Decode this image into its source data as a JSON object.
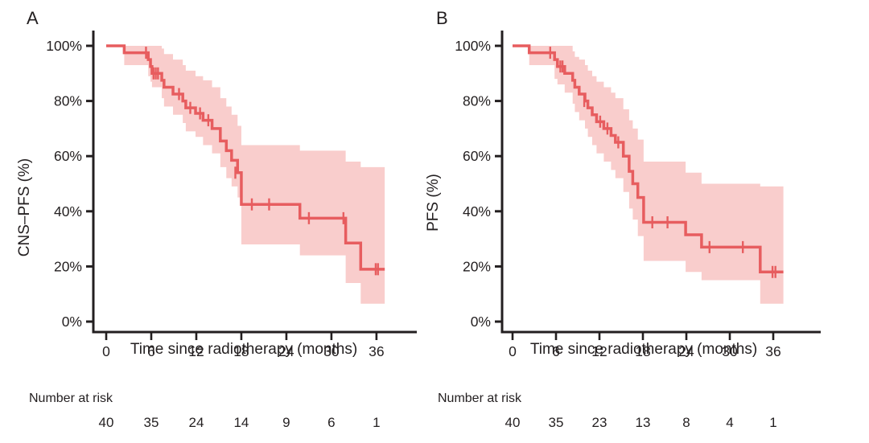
{
  "page": {
    "background": "#ffffff"
  },
  "colors": {
    "curve": "#e75d5f",
    "ci_band": "#f9cdcc",
    "axis_and_text": "#231f20"
  },
  "chart_data": [
    {
      "type": "line",
      "subtype": "kaplan_meier_step_with_ci",
      "panel_label": "A",
      "ylabel": "CNS–PFS (%)",
      "xlabel": "Time since radiotherapy (months)",
      "x_ticks": [
        0,
        6,
        12,
        18,
        24,
        30,
        36
      ],
      "y_tick_labels": [
        "0%",
        "20%",
        "40%",
        "60%",
        "80%",
        "100%"
      ],
      "y_tick_values": [
        0,
        20,
        40,
        60,
        80,
        100
      ],
      "xlim": [
        0,
        41
      ],
      "ylim": [
        0,
        100
      ],
      "grid": false,
      "legend": "none",
      "series": [
        {
          "name": "CNS-PFS",
          "t": [
            0,
            2.4,
            5.6,
            5.9,
            6.1,
            7.4,
            7.7,
            8.9,
            10.2,
            10.6,
            11.9,
            12.9,
            14.1,
            15.2,
            16.0,
            16.7,
            17.5,
            18.0,
            25.8,
            31.9,
            33.9
          ],
          "s": [
            100,
            97.5,
            95,
            92.5,
            90,
            87.5,
            85,
            82.5,
            80,
            77.5,
            75.5,
            73,
            70,
            65.5,
            62,
            58.5,
            54,
            42.5,
            37.5,
            28.5,
            19
          ],
          "end_time": 37.1
        }
      ],
      "censor_marks": [
        [
          5.3,
          97.5
        ],
        [
          6.3,
          90
        ],
        [
          6.6,
          90
        ],
        [
          6.9,
          90
        ],
        [
          9.7,
          82.5
        ],
        [
          11.2,
          77.5
        ],
        [
          12.5,
          75.5
        ],
        [
          13.6,
          73
        ],
        [
          17.2,
          54
        ],
        [
          19.4,
          42.5
        ],
        [
          21.7,
          42.5
        ],
        [
          27.0,
          37.5
        ],
        [
          31.6,
          37.5
        ],
        [
          35.9,
          19
        ],
        [
          36.2,
          19
        ]
      ],
      "confidence_interval": {
        "t": [
          2.4,
          5.6,
          5.9,
          6.1,
          7.4,
          7.7,
          8.9,
          10.2,
          10.6,
          11.9,
          12.9,
          14.1,
          15.2,
          16.0,
          16.7,
          17.5,
          18.0,
          25.8,
          31.9,
          33.9
        ],
        "upper": [
          100,
          100,
          100,
          100,
          99,
          97,
          95,
          93,
          91,
          89,
          87.5,
          85,
          81,
          78,
          75,
          71,
          64,
          62,
          58,
          56
        ],
        "lower": [
          93,
          89,
          87,
          85,
          81,
          78,
          75,
          72,
          69,
          67,
          64,
          61,
          56,
          52,
          49,
          45,
          28,
          24,
          14,
          6.5
        ]
      },
      "number_at_risk": {
        "label": "Number at risk",
        "times": [
          0,
          6,
          12,
          18,
          24,
          30,
          36
        ],
        "values": [
          40,
          35,
          24,
          14,
          9,
          6,
          1
        ]
      }
    },
    {
      "type": "line",
      "subtype": "kaplan_meier_step_with_ci",
      "panel_label": "B",
      "ylabel": "PFS (%)",
      "xlabel": "Time since radiotherapy (months)",
      "x_ticks": [
        0,
        6,
        12,
        18,
        24,
        30,
        36
      ],
      "y_tick_labels": [
        "0%",
        "20%",
        "40%",
        "60%",
        "80%",
        "100%"
      ],
      "y_tick_values": [
        0,
        20,
        40,
        60,
        80,
        100
      ],
      "xlim": [
        0,
        41
      ],
      "ylim": [
        0,
        100
      ],
      "grid": false,
      "legend": "none",
      "series": [
        {
          "name": "PFS",
          "t": [
            0,
            2.3,
            5.8,
            6.2,
            7.2,
            8.3,
            8.6,
            9.2,
            10.0,
            10.4,
            11.0,
            11.6,
            12.6,
            13.6,
            14.2,
            15.3,
            16.1,
            16.6,
            17.3,
            18.1,
            23.9,
            26.1,
            34.2
          ],
          "s": [
            100,
            97.5,
            95,
            92.5,
            90,
            87.5,
            85,
            82.5,
            80,
            77.5,
            75,
            72.5,
            70,
            67.5,
            65,
            60,
            54.5,
            50,
            45,
            36,
            31.5,
            27,
            18
          ],
          "end_time": 37.4
        }
      ],
      "censor_marks": [
        [
          5.2,
          97.5
        ],
        [
          6.6,
          92.5
        ],
        [
          6.9,
          92.5
        ],
        [
          9.9,
          80
        ],
        [
          12.1,
          72.5
        ],
        [
          13.1,
          70
        ],
        [
          14.6,
          65
        ],
        [
          19.3,
          36
        ],
        [
          21.4,
          36
        ],
        [
          27.2,
          27
        ],
        [
          31.8,
          27
        ],
        [
          35.9,
          18
        ],
        [
          36.3,
          18
        ]
      ],
      "confidence_interval": {
        "t": [
          2.3,
          5.8,
          6.2,
          7.2,
          8.3,
          8.6,
          9.2,
          10.0,
          10.4,
          11.0,
          11.6,
          12.6,
          13.6,
          14.2,
          15.3,
          16.1,
          16.6,
          17.3,
          18.1,
          23.9,
          26.1,
          34.2
        ],
        "upper": [
          100,
          100,
          100,
          100,
          98,
          96,
          95,
          93,
          91,
          89,
          87,
          85,
          83,
          81,
          77,
          73,
          70,
          66,
          58,
          54,
          50,
          49
        ],
        "lower": [
          93,
          88,
          86,
          83,
          79,
          76,
          73,
          70,
          67,
          64,
          61,
          58,
          55,
          52,
          47,
          41,
          37,
          31,
          22,
          18,
          15,
          6.5
        ]
      },
      "number_at_risk": {
        "label": "Number at risk",
        "times": [
          0,
          6,
          12,
          18,
          24,
          30,
          36
        ],
        "values": [
          40,
          35,
          23,
          13,
          8,
          4,
          1
        ]
      }
    }
  ]
}
